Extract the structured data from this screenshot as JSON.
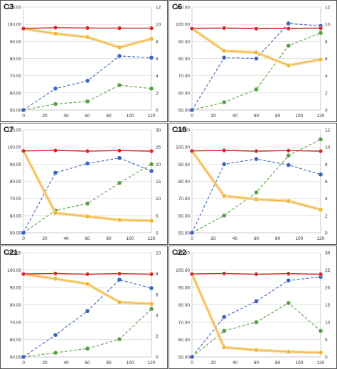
{
  "colors": {
    "red": "#cc1f1f",
    "red_marker": "#d42a2a",
    "orange": "#f2b735",
    "orange_glow": "#f7d79a",
    "blue": "#4a6fc4",
    "blue_marker": "#3d63c0",
    "green": "#6aa84f",
    "green_marker": "#5a9e4a",
    "grid": "#d9d9d9",
    "axis_text": "#333333"
  },
  "chart_data": [
    {
      "type": "line",
      "title": "C3",
      "x": [
        0,
        30,
        60,
        90,
        120
      ],
      "xlim": [
        0,
        120
      ],
      "xticks": [
        "0",
        "20",
        "40",
        "60",
        "80",
        "100",
        "120"
      ],
      "ylim": [
        50,
        110
      ],
      "yticks": [
        "50.00",
        "60.00",
        "70.00",
        "80.00",
        "90.00",
        "100.00",
        "110.00"
      ],
      "y2lim": [
        0,
        12
      ],
      "y2ticks": [
        "0",
        "2",
        "4",
        "6",
        "8",
        "10",
        "12"
      ],
      "series": [
        {
          "axis": "left",
          "color": "red",
          "values": [
            97.5,
            98,
            97.8,
            97.7,
            97.7
          ]
        },
        {
          "axis": "left",
          "color": "orange",
          "values": [
            97.5,
            94.5,
            92.5,
            86.5,
            91.5
          ]
        },
        {
          "axis": "right",
          "color": "blue",
          "values": [
            0,
            2.5,
            3.4,
            6.3,
            6.1
          ]
        },
        {
          "axis": "right",
          "color": "green",
          "values": [
            0,
            0.7,
            1.0,
            2.9,
            2.5
          ]
        }
      ]
    },
    {
      "type": "line",
      "title": "C6",
      "x": [
        0,
        30,
        60,
        90,
        120
      ],
      "xlim": [
        0,
        120
      ],
      "xticks": [
        "0",
        "20",
        "40",
        "60",
        "80",
        "100",
        "120"
      ],
      "ylim": [
        50,
        110
      ],
      "yticks": [
        "50.00",
        "60.00",
        "70.00",
        "80.00",
        "90.00",
        "100.00",
        "110.00"
      ],
      "y2lim": [
        0,
        12
      ],
      "y2ticks": [
        "0",
        "2",
        "4",
        "6",
        "8",
        "10",
        "12"
      ],
      "series": [
        {
          "axis": "left",
          "color": "red",
          "values": [
            97.5,
            97.8,
            97.4,
            97.5,
            97.7
          ]
        },
        {
          "axis": "left",
          "color": "orange",
          "values": [
            97.5,
            84.5,
            83.5,
            76.0,
            79.5
          ]
        },
        {
          "axis": "right",
          "color": "blue",
          "values": [
            0,
            6.1,
            6.0,
            10.1,
            9.8
          ]
        },
        {
          "axis": "right",
          "color": "green",
          "values": [
            0,
            0.9,
            2.4,
            7.5,
            9.0
          ]
        }
      ]
    },
    {
      "type": "line",
      "title": "C7",
      "x": [
        0,
        30,
        60,
        90,
        120
      ],
      "xlim": [
        0,
        120
      ],
      "xticks": [
        "0",
        "20",
        "40",
        "60",
        "80",
        "100",
        "120"
      ],
      "ylim": [
        50,
        110
      ],
      "yticks": [
        "50.00",
        "60.00",
        "70.00",
        "80.00",
        "90.00",
        "100.00",
        "110.00"
      ],
      "y2lim": [
        0,
        30
      ],
      "y2ticks": [
        "0",
        "5",
        "10",
        "15",
        "20",
        "25",
        "30"
      ],
      "series": [
        {
          "axis": "left",
          "color": "red",
          "values": [
            97.7,
            98.0,
            97.6,
            97.9,
            97.6
          ]
        },
        {
          "axis": "left",
          "color": "orange",
          "values": [
            97.7,
            61.5,
            59.5,
            57.5,
            57.0
          ]
        },
        {
          "axis": "right",
          "color": "blue",
          "values": [
            0,
            17.5,
            20.2,
            21.8,
            18.0
          ]
        },
        {
          "axis": "right",
          "color": "green",
          "values": [
            0,
            6.5,
            8.5,
            14.5,
            20.0
          ]
        }
      ]
    },
    {
      "type": "line",
      "title": "C18",
      "x": [
        0,
        30,
        60,
        90,
        120
      ],
      "xlim": [
        0,
        120
      ],
      "xticks": [
        "0",
        "20",
        "40",
        "60",
        "80",
        "100",
        "120"
      ],
      "ylim": [
        50,
        110
      ],
      "yticks": [
        "50.00",
        "60.00",
        "70.00",
        "80.00",
        "90.00",
        "100.00",
        "110.00"
      ],
      "y2lim": [
        0,
        12
      ],
      "y2ticks": [
        "0",
        "2",
        "4",
        "6",
        "8",
        "10",
        "12"
      ],
      "series": [
        {
          "axis": "left",
          "color": "red",
          "values": [
            97.7,
            98.0,
            97.6,
            97.9,
            97.6
          ]
        },
        {
          "axis": "left",
          "color": "orange",
          "values": [
            97.7,
            71.5,
            69.5,
            68.5,
            63.5
          ]
        },
        {
          "axis": "right",
          "color": "blue",
          "values": [
            0,
            8.0,
            8.6,
            7.9,
            6.8
          ]
        },
        {
          "axis": "right",
          "color": "green",
          "values": [
            0,
            2.0,
            4.7,
            9.0,
            10.9
          ]
        }
      ]
    },
    {
      "type": "line",
      "title": "C21",
      "x": [
        0,
        30,
        60,
        90,
        120
      ],
      "xlim": [
        0,
        120
      ],
      "xticks": [
        "0",
        "20",
        "40",
        "60",
        "80",
        "100",
        "120"
      ],
      "ylim": [
        50,
        110
      ],
      "yticks": [
        "50.00",
        "60.00",
        "70.00",
        "80.00",
        "90.00",
        "100.00",
        "110.00"
      ],
      "y2lim": [
        0,
        10
      ],
      "y2ticks": [
        "0",
        "2",
        "4",
        "6",
        "8",
        "10"
      ],
      "series": [
        {
          "axis": "left",
          "color": "red",
          "values": [
            97.7,
            98.0,
            97.6,
            97.9,
            97.6
          ]
        },
        {
          "axis": "left",
          "color": "orange",
          "values": [
            97.7,
            95.0,
            92.0,
            81.5,
            80.5
          ]
        },
        {
          "axis": "right",
          "color": "blue",
          "values": [
            0,
            2.1,
            4.4,
            7.4,
            6.6
          ]
        },
        {
          "axis": "right",
          "color": "green",
          "values": [
            0,
            0.4,
            0.8,
            1.7,
            4.6
          ]
        }
      ]
    },
    {
      "type": "line",
      "title": "C22",
      "x": [
        0,
        30,
        60,
        90,
        120
      ],
      "xlim": [
        0,
        120
      ],
      "xticks": [
        "0",
        "20",
        "40",
        "60",
        "80",
        "100",
        "120"
      ],
      "ylim": [
        50,
        110
      ],
      "yticks": [
        "50.00",
        "60.00",
        "70.00",
        "80.00",
        "90.00",
        "100.00",
        "110.00"
      ],
      "y2lim": [
        0,
        30
      ],
      "y2ticks": [
        "0",
        "5",
        "10",
        "15",
        "20",
        "25",
        "30"
      ],
      "series": [
        {
          "axis": "left",
          "color": "red",
          "values": [
            97.7,
            98.0,
            97.6,
            97.9,
            97.6
          ]
        },
        {
          "axis": "left",
          "color": "orange",
          "values": [
            97.7,
            55.5,
            54.0,
            53.0,
            52.5
          ]
        },
        {
          "axis": "right",
          "color": "blue",
          "values": [
            0,
            11.5,
            16.0,
            22.0,
            23.0
          ]
        },
        {
          "axis": "right",
          "color": "green",
          "values": [
            0,
            7.5,
            10.0,
            15.5,
            7.5
          ]
        }
      ]
    }
  ]
}
